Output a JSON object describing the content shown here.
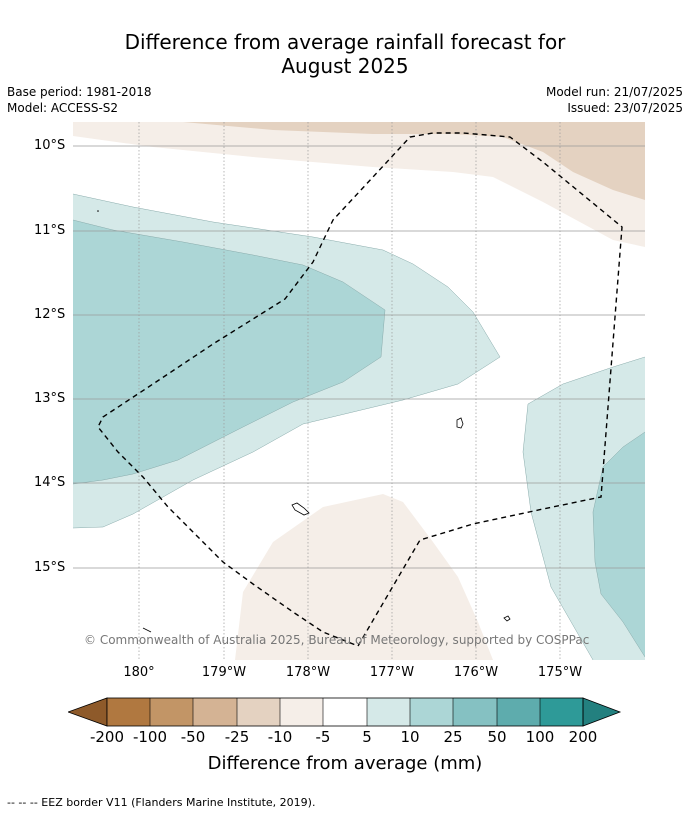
{
  "title_line1": "Difference from average rainfall forecast for",
  "title_line2": "August 2025",
  "meta_left": {
    "base_period": "Base period: 1981-2018",
    "model": "Model: ACCESS-S2"
  },
  "meta_right": {
    "model_run": "Model run: 21/07/2025",
    "issued": "Issued: 23/07/2025"
  },
  "lat_labels": [
    "10°S",
    "11°S",
    "12°S",
    "13°S",
    "14°S",
    "15°S"
  ],
  "lon_labels": [
    "180°",
    "179°W",
    "178°W",
    "177°W",
    "176°W",
    "175°W"
  ],
  "copyright": "© Commonwealth of Australia 2025, Bureau of Meteorology, supported by COSPPac",
  "legend": {
    "ticks": [
      "-200",
      "-100",
      "-50",
      "-25",
      "-10",
      "-5",
      "5",
      "10",
      "25",
      "50",
      "100",
      "200"
    ],
    "colors": [
      "#8e5a2a",
      "#b07840",
      "#c29566",
      "#d4b394",
      "#e4d2c1",
      "#f5eee8",
      "#ffffff",
      "#d5e9e8",
      "#acd6d6",
      "#85c1c2",
      "#5eacad",
      "#2e9a98",
      "#23807f"
    ],
    "title": "Difference from average (mm)"
  },
  "footnote": "--  --  -- EEZ border V11 (Flanders Marine Institute, 2019)."
}
